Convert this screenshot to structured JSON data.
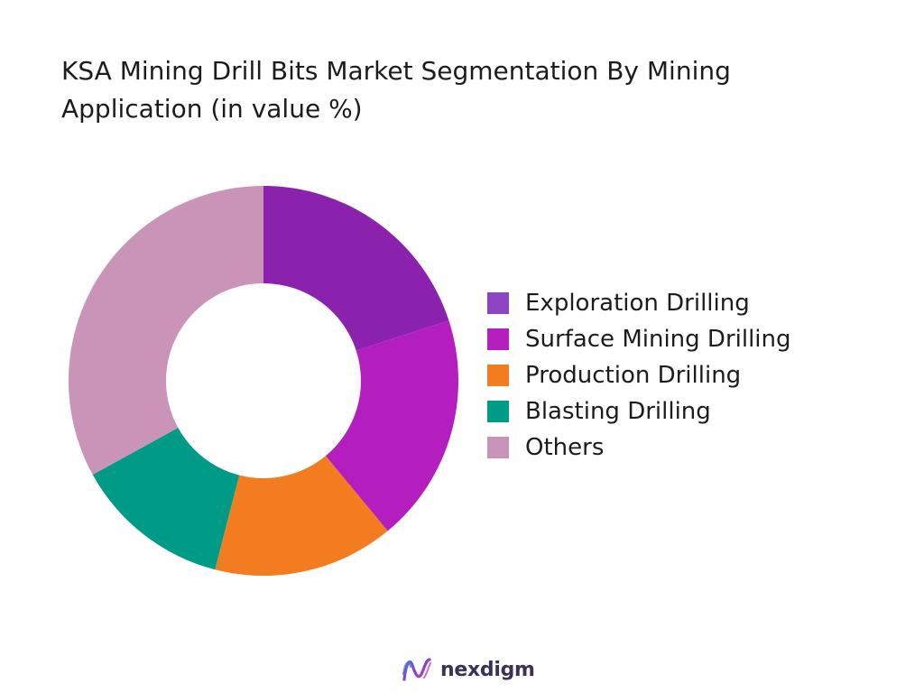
{
  "chart_data": {
    "type": "pie",
    "title": "KSA Mining Drill Bits Market Segmentation By Mining Application (in value %)",
    "donut": true,
    "legend_position": "right",
    "categories": [
      "Exploration Drilling",
      "Surface Mining Drilling",
      "Production Drilling",
      "Blasting Drilling",
      "Others"
    ],
    "values": [
      20,
      19,
      15,
      13,
      33
    ],
    "colors": [
      "#8B22AE",
      "#B41EBF",
      "#F47C20",
      "#009B87",
      "#C994B8"
    ],
    "legend_colors": [
      "#8E44C0",
      "#B41EBF",
      "#F47C20",
      "#009B87",
      "#C994B8"
    ]
  },
  "brand": {
    "name": "nexdigm"
  }
}
